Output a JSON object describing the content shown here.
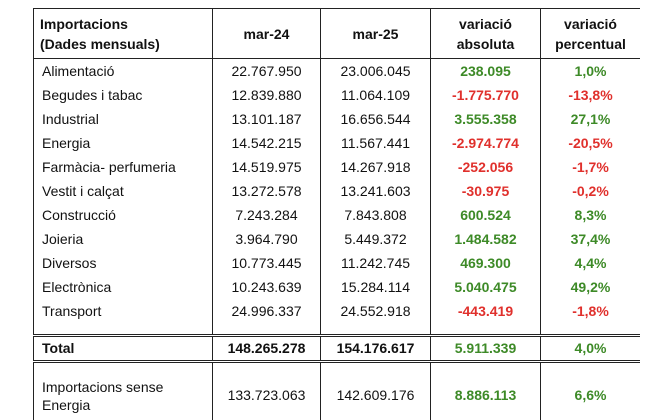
{
  "table": {
    "header": [
      [
        "Importacions",
        "(Dades mensuals)"
      ],
      [
        "mar-24"
      ],
      [
        "mar-25"
      ],
      [
        "variació",
        "absoluta"
      ],
      [
        "variació",
        "percentual"
      ]
    ],
    "rows": [
      [
        "Alimentació",
        "22.767.950",
        "23.006.045",
        "238.095",
        "1,0%"
      ],
      [
        "Begudes i tabac",
        "12.839.880",
        "11.064.109",
        "-1.775.770",
        "-13,8%"
      ],
      [
        "Industrial",
        "13.101.187",
        "16.656.544",
        "3.555.358",
        "27,1%"
      ],
      [
        "Energia",
        "14.542.215",
        "11.567.441",
        "-2.974.774",
        "-20,5%"
      ],
      [
        "Farmàcia- perfumeria",
        "14.519.975",
        "14.267.918",
        "-252.056",
        "-1,7%"
      ],
      [
        "Vestit i calçat",
        "13.272.578",
        "13.241.603",
        "-30.975",
        "-0,2%"
      ],
      [
        "Construcció",
        "7.243.284",
        "7.843.808",
        "600.524",
        "8,3%"
      ],
      [
        "Joieria",
        "3.964.790",
        "5.449.372",
        "1.484.582",
        "37,4%"
      ],
      [
        "Diversos",
        "10.773.445",
        "11.242.745",
        "469.300",
        "4,4%"
      ],
      [
        "Electrònica",
        "10.243.639",
        "15.284.114",
        "5.040.475",
        "49,2%"
      ],
      [
        "Transport",
        "24.996.337",
        "24.552.918",
        "-443.419",
        "-1,8%"
      ]
    ],
    "total": [
      "Total",
      "148.265.278",
      "154.176.617",
      "5.911.339",
      "4,0%"
    ],
    "extra": [
      [
        "Importacions sense",
        "Energia"
      ],
      "133.723.063",
      "142.609.176",
      "8.886.113",
      "6,6%"
    ]
  }
}
